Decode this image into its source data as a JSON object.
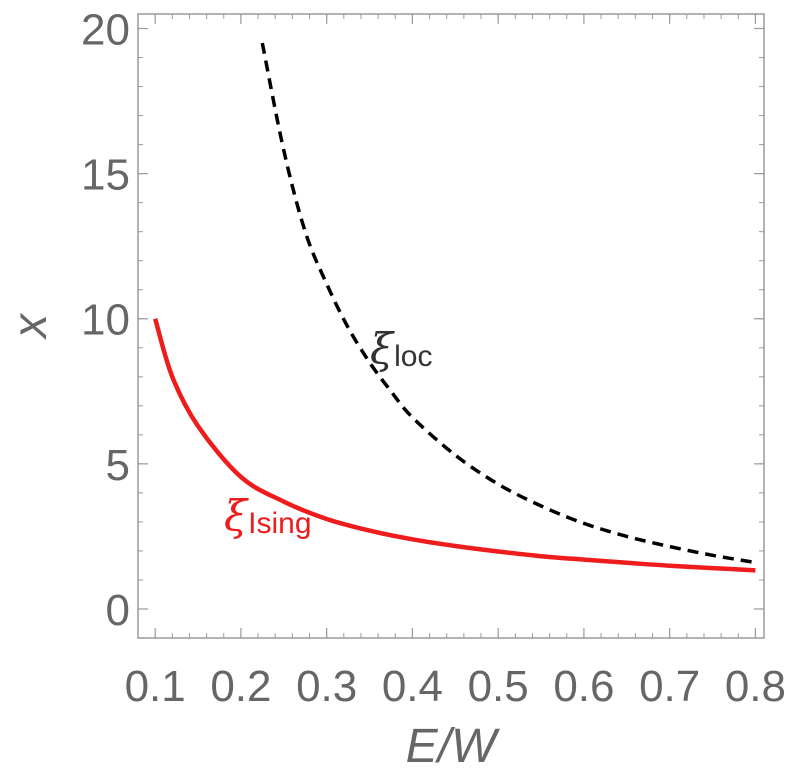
{
  "chart_data": {
    "type": "line",
    "xlabel": "E/W",
    "ylabel": "x",
    "xlim": [
      0.08,
      0.81
    ],
    "ylim": [
      -1,
      20.5
    ],
    "xticks": [
      0.1,
      0.2,
      0.3,
      0.4,
      0.5,
      0.6,
      0.7,
      0.8
    ],
    "xtick_labels": [
      "0.1",
      "0.2",
      "0.3",
      "0.4",
      "0.5",
      "0.6",
      "0.7",
      "0.8"
    ],
    "yticks": [
      0,
      5,
      10,
      15,
      20
    ],
    "ytick_labels": [
      "0",
      "5",
      "10",
      "15",
      "20"
    ],
    "grid": false,
    "series": [
      {
        "label_main": "ξ",
        "label_sub": "Ising",
        "color": "#ee1c1c",
        "dash": "solid",
        "x": [
          0.1,
          0.12,
          0.15,
          0.2,
          0.25,
          0.3,
          0.35,
          0.4,
          0.45,
          0.5,
          0.55,
          0.6,
          0.65,
          0.7,
          0.75,
          0.8
        ],
        "y": [
          10.0,
          8.0,
          6.3,
          4.55,
          3.7,
          3.1,
          2.7,
          2.4,
          2.17,
          1.98,
          1.82,
          1.7,
          1.59,
          1.49,
          1.41,
          1.33
        ]
      },
      {
        "label_main": "ξ",
        "label_sub": "loc",
        "color": "#000000",
        "dash": "dashed",
        "x": [
          0.225,
          0.25,
          0.275,
          0.3,
          0.325,
          0.35,
          0.375,
          0.4,
          0.45,
          0.5,
          0.55,
          0.6,
          0.65,
          0.7,
          0.75,
          0.8
        ],
        "y": [
          19.5,
          15.8,
          13.0,
          11.2,
          9.7,
          8.5,
          7.5,
          6.6,
          5.3,
          4.3,
          3.55,
          2.95,
          2.5,
          2.15,
          1.85,
          1.6
        ]
      }
    ]
  }
}
